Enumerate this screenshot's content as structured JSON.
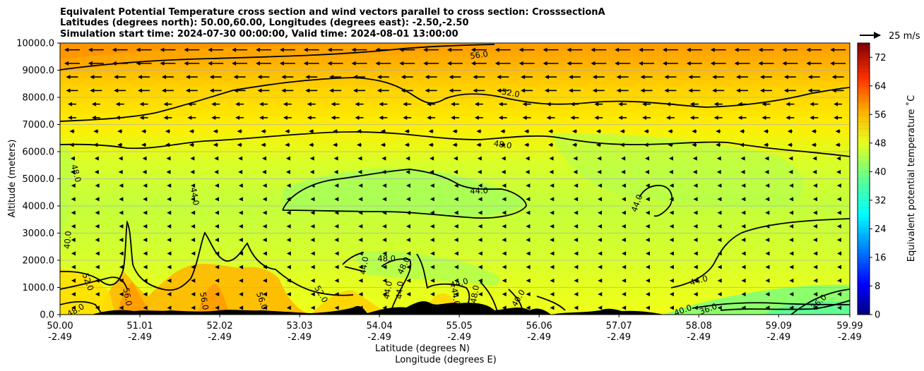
{
  "chart_data": {
    "type": "contour",
    "title_lines": [
      "Equivalent Potential Temperature cross section and wind vectors parallel to cross section: CrosssectionA",
      "Latitudes (degrees north): 50.00,60.00, Longitudes (degrees east): -2.50,-2.50",
      "Simulation start time: 2024-07-30 00:00:00, Valid time: 2024-08-01 13:00:00"
    ],
    "ylabel": "Altitude (meters)",
    "xlabel_lat": "Latitude (degrees N)",
    "xlabel_lon": "Longitude (degrees E)",
    "ylim": [
      0,
      10000
    ],
    "y_ticks": [
      "0.0",
      "1000.0",
      "2000.0",
      "3000.0",
      "4000.0",
      "5000.0",
      "6000.0",
      "7000.0",
      "8000.0",
      "9000.0",
      "10000.0"
    ],
    "x_ticks_lat": [
      "50.00",
      "51.01",
      "52.02",
      "53.03",
      "54.04",
      "55.05",
      "56.06",
      "57.07",
      "58.08",
      "59.09",
      "59.99"
    ],
    "x_ticks_lon": [
      "-2.49",
      "-2.49",
      "-2.49",
      "-2.49",
      "-2.49",
      "-2.49",
      "-2.49",
      "-2.49",
      "-2.49",
      "-2.49",
      "-2.49"
    ],
    "x_range": [
      50.0,
      59.99
    ],
    "grid": "horizontal",
    "colorbar": {
      "label": "Equivalent potential temperature $^\\circ$C",
      "label_text": "Equivalent potential temperature ˚C",
      "range": [
        0,
        76
      ],
      "ticks": [
        "0",
        "8",
        "16",
        "24",
        "32",
        "40",
        "48",
        "56",
        "64",
        "72"
      ]
    },
    "quiver_key": "25 m/s",
    "contour_labels": [
      {
        "text": "56.0",
        "lat": 55.3,
        "alt": 9550,
        "rot": -8
      },
      {
        "text": "52.0",
        "lat": 55.7,
        "alt": 8150,
        "rot": 10
      },
      {
        "text": "48.0",
        "lat": 55.6,
        "alt": 6250,
        "rot": 8
      },
      {
        "text": "44.0",
        "lat": 55.3,
        "alt": 4550,
        "rot": -2
      },
      {
        "text": "48.0",
        "lat": 50.2,
        "alt": 5200,
        "rot": 75
      },
      {
        "text": "44.0",
        "lat": 51.7,
        "alt": 4350,
        "rot": 80
      },
      {
        "text": "44.0",
        "lat": 57.3,
        "alt": 4100,
        "rot": -70
      },
      {
        "text": "40.0",
        "lat": 50.1,
        "alt": 2750,
        "rot": -85
      },
      {
        "text": "48.0",
        "lat": 54.13,
        "alt": 2050,
        "rot": 0
      },
      {
        "text": "48.0",
        "lat": 54.35,
        "alt": 1800,
        "rot": -65
      },
      {
        "text": "44.0",
        "lat": 53.85,
        "alt": 1800,
        "rot": -80
      },
      {
        "text": "52.0",
        "lat": 50.35,
        "alt": 1200,
        "rot": 70
      },
      {
        "text": "56.0",
        "lat": 50.85,
        "alt": 650,
        "rot": 80
      },
      {
        "text": "56.0",
        "lat": 51.82,
        "alt": 500,
        "rot": 80
      },
      {
        "text": "56.0",
        "lat": 52.55,
        "alt": 500,
        "rot": 70
      },
      {
        "text": "52.0",
        "lat": 53.3,
        "alt": 750,
        "rot": 60
      },
      {
        "text": "44.0",
        "lat": 54.15,
        "alt": 900,
        "rot": -80
      },
      {
        "text": "44.0",
        "lat": 54.3,
        "alt": 900,
        "rot": -85
      },
      {
        "text": "44.0",
        "lat": 55.05,
        "alt": 1150,
        "rot": -15
      },
      {
        "text": "44.0",
        "lat": 55.0,
        "alt": 650,
        "rot": 80
      },
      {
        "text": "48.0",
        "lat": 55.25,
        "alt": 750,
        "rot": -80
      },
      {
        "text": "40.0",
        "lat": 55.8,
        "alt": 600,
        "rot": -60
      },
      {
        "text": "44.0",
        "lat": 58.08,
        "alt": 1250,
        "rot": -15
      },
      {
        "text": "40.0",
        "lat": 57.88,
        "alt": 150,
        "rot": -20
      },
      {
        "text": "36.0",
        "lat": 58.2,
        "alt": 200,
        "rot": -20
      },
      {
        "text": "36.0",
        "lat": 59.6,
        "alt": 450,
        "rot": -45
      },
      {
        "text": "48.0",
        "lat": 50.2,
        "alt": 150,
        "rot": -30
      }
    ]
  }
}
